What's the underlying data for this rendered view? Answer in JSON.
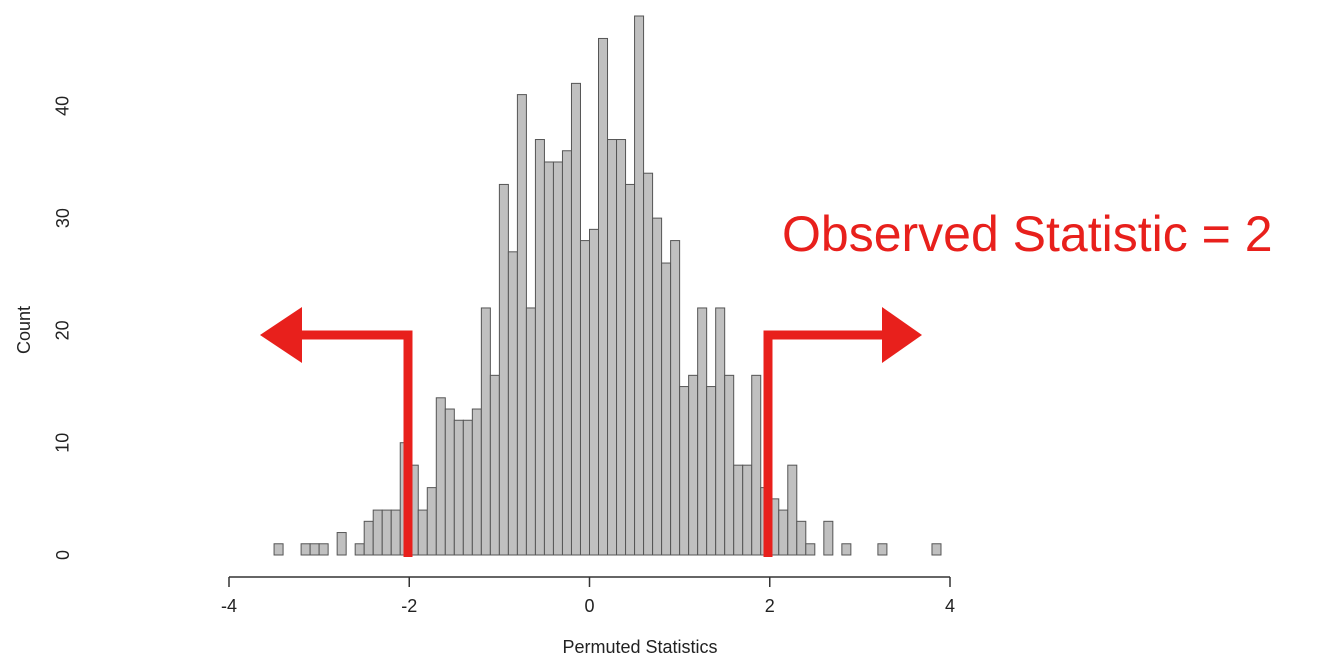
{
  "chart_data": {
    "type": "histogram",
    "xlabel": "Permuted Statistics",
    "ylabel": "Count",
    "annotation": "Observed Statistic = 2",
    "bins": [
      -3.5,
      -3.4,
      -3.3,
      -3.2,
      -3.1,
      -3.0,
      -2.9,
      -2.8,
      -2.7,
      -2.6,
      -2.5,
      -2.4,
      -2.3,
      -2.2,
      -2.1,
      -2.0,
      -1.9,
      -1.8,
      -1.7,
      -1.6,
      -1.5,
      -1.4,
      -1.3,
      -1.2,
      -1.1,
      -1.0,
      -0.9,
      -0.8,
      -0.7,
      -0.6,
      -0.5,
      -0.4,
      -0.3,
      -0.2,
      -0.1,
      0.0,
      0.1,
      0.2,
      0.3,
      0.4,
      0.5,
      0.6,
      0.7,
      0.8,
      0.9,
      1.0,
      1.1,
      1.2,
      1.3,
      1.4,
      1.5,
      1.6,
      1.7,
      1.8,
      1.9,
      2.0,
      2.1,
      2.2,
      2.3,
      2.4,
      2.5,
      2.6,
      2.7,
      2.8,
      2.9,
      3.0,
      3.1,
      3.2,
      3.3,
      3.4,
      3.5,
      3.6,
      3.7,
      3.8,
      3.9
    ],
    "values": [
      1,
      0,
      0,
      1,
      1,
      1,
      0,
      2,
      0,
      1,
      3,
      4,
      4,
      4,
      10,
      8,
      4,
      6,
      14,
      13,
      12,
      12,
      13,
      22,
      16,
      33,
      27,
      41,
      22,
      37,
      35,
      35,
      36,
      42,
      28,
      29,
      46,
      37,
      37,
      33,
      48,
      34,
      30,
      26,
      28,
      15,
      16,
      22,
      15,
      22,
      16,
      8,
      8,
      16,
      6,
      5,
      4,
      8,
      3,
      1,
      0,
      3,
      0,
      1,
      0,
      0,
      0,
      1,
      0,
      0,
      0,
      0,
      0,
      1
    ],
    "color": "#c0c0c0",
    "xlim": [
      -4,
      4
    ],
    "xticks": [
      -4,
      -2,
      0,
      2,
      4
    ],
    "ylim": [
      0,
      48
    ],
    "yticks": [
      0,
      10,
      20,
      30,
      40
    ]
  }
}
